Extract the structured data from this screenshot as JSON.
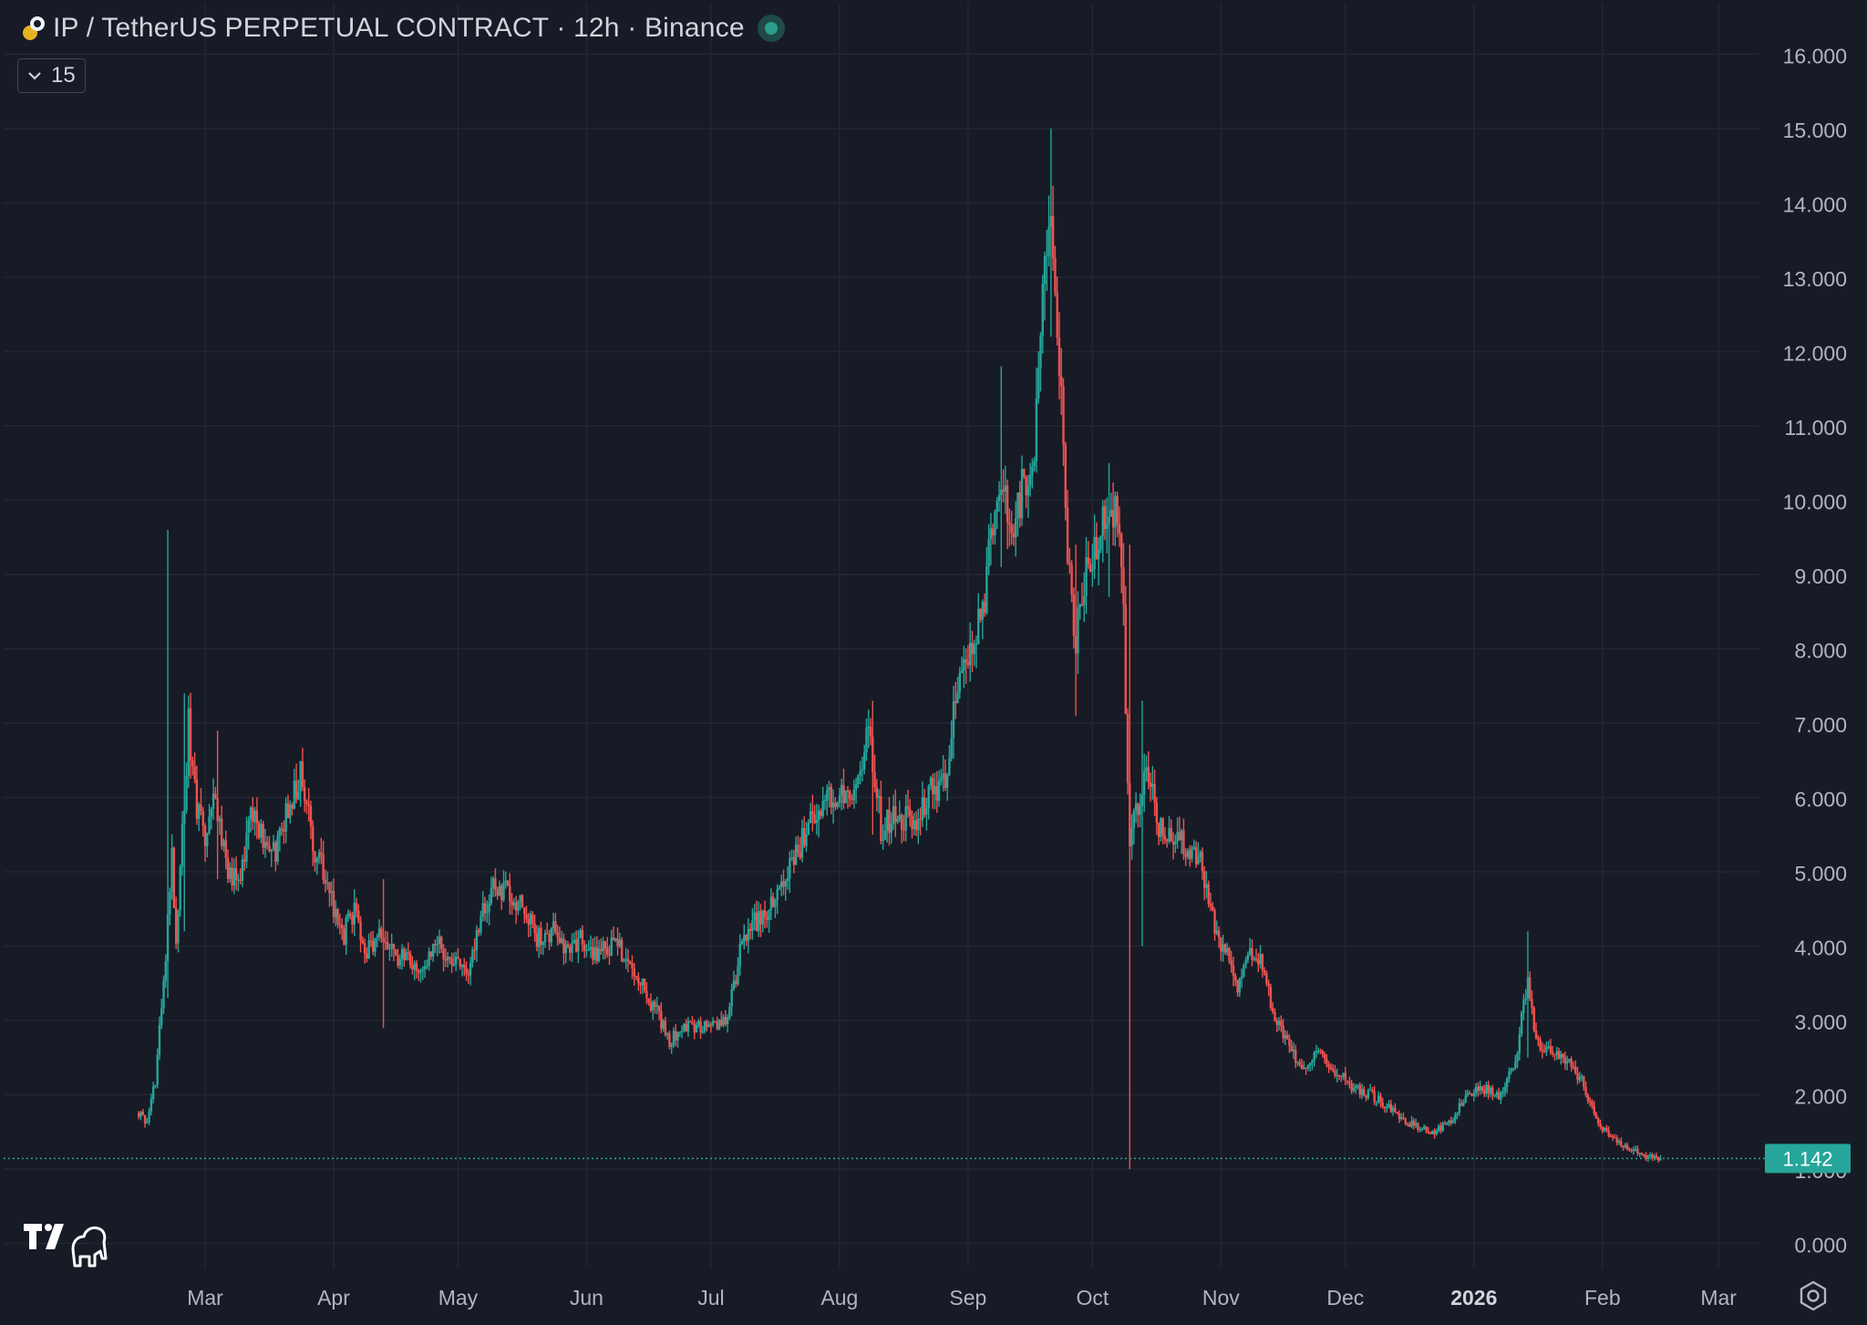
{
  "header": {
    "symbol_title": "IP / TetherUS PERPETUAL CONTRACT · 12h · Binance",
    "indicator_count": "15"
  },
  "icons": {
    "symbol": "symbol-logo-icon",
    "status": "market-status-icon",
    "collapse": "chevron-down-icon",
    "brand": "tradingview-logo-icon",
    "settings": "gear-icon"
  },
  "colors": {
    "background": "#171b26",
    "grid": "#232733",
    "up": "#26a69a",
    "down": "#ef5350",
    "text": "#b2b5be",
    "last_price_bg": "#26a69a"
  },
  "chart_data": {
    "type": "candlestick",
    "interval": "12h",
    "y_axis": {
      "range": [
        0,
        16
      ],
      "ticks": [
        "0.000",
        "1.000",
        "2.000",
        "3.000",
        "4.000",
        "5.000",
        "6.000",
        "7.000",
        "8.000",
        "9.000",
        "10.000",
        "11.000",
        "12.000",
        "13.000",
        "14.000",
        "15.000",
        "16.000"
      ]
    },
    "x_axis": {
      "ticks": [
        {
          "date": "2025-03-01",
          "label": "Mar",
          "bold": false
        },
        {
          "date": "2025-04-01",
          "label": "Apr",
          "bold": false
        },
        {
          "date": "2025-05-01",
          "label": "May",
          "bold": false
        },
        {
          "date": "2025-06-01",
          "label": "Jun",
          "bold": false
        },
        {
          "date": "2025-07-01",
          "label": "Jul",
          "bold": false
        },
        {
          "date": "2025-08-01",
          "label": "Aug",
          "bold": false
        },
        {
          "date": "2025-09-01",
          "label": "Sep",
          "bold": false
        },
        {
          "date": "2025-10-01",
          "label": "Oct",
          "bold": false
        },
        {
          "date": "2025-11-01",
          "label": "Nov",
          "bold": false
        },
        {
          "date": "2025-12-01",
          "label": "Dec",
          "bold": false
        },
        {
          "date": "2026-01-01",
          "label": "2026",
          "bold": true
        },
        {
          "date": "2026-02-01",
          "label": "Feb",
          "bold": false
        },
        {
          "date": "2026-03-01",
          "label": "Mar",
          "bold": false
        }
      ]
    },
    "last_price": 1.142,
    "last_price_label": "1.142",
    "price_path": [
      [
        "2025-02-13",
        1.75
      ],
      [
        "2025-02-15",
        1.6
      ],
      [
        "2025-02-17",
        2.2
      ],
      [
        "2025-02-19",
        3.5
      ],
      [
        "2025-02-21",
        5.2
      ],
      [
        "2025-02-22",
        4.0
      ],
      [
        "2025-02-24",
        6.0
      ],
      [
        "2025-02-25",
        7.0
      ],
      [
        "2025-02-27",
        5.8
      ],
      [
        "2025-03-01",
        5.5
      ],
      [
        "2025-03-03",
        6.2
      ],
      [
        "2025-03-06",
        5.1
      ],
      [
        "2025-03-09",
        4.8
      ],
      [
        "2025-03-12",
        5.8
      ],
      [
        "2025-03-15",
        5.5
      ],
      [
        "2025-03-18",
        5.3
      ],
      [
        "2025-03-21",
        5.9
      ],
      [
        "2025-03-24",
        6.3
      ],
      [
        "2025-03-27",
        5.4
      ],
      [
        "2025-03-30",
        4.9
      ],
      [
        "2025-04-03",
        4.1
      ],
      [
        "2025-04-06",
        4.5
      ],
      [
        "2025-04-09",
        3.9
      ],
      [
        "2025-04-12",
        4.2
      ],
      [
        "2025-04-16",
        3.8
      ],
      [
        "2025-04-19",
        3.9
      ],
      [
        "2025-04-22",
        3.6
      ],
      [
        "2025-04-26",
        4.0
      ],
      [
        "2025-04-29",
        3.9
      ],
      [
        "2025-05-03",
        3.6
      ],
      [
        "2025-05-07",
        4.5
      ],
      [
        "2025-05-10",
        4.8
      ],
      [
        "2025-05-13",
        4.7
      ],
      [
        "2025-05-17",
        4.5
      ],
      [
        "2025-05-20",
        4.1
      ],
      [
        "2025-05-24",
        4.2
      ],
      [
        "2025-05-27",
        3.9
      ],
      [
        "2025-05-31",
        4.1
      ],
      [
        "2025-06-03",
        3.9
      ],
      [
        "2025-06-07",
        4.0
      ],
      [
        "2025-06-11",
        3.9
      ],
      [
        "2025-06-15",
        3.4
      ],
      [
        "2025-06-18",
        3.1
      ],
      [
        "2025-06-21",
        2.7
      ],
      [
        "2025-06-24",
        2.9
      ],
      [
        "2025-06-28",
        2.9
      ],
      [
        "2025-07-02",
        2.9
      ],
      [
        "2025-07-05",
        3.0
      ],
      [
        "2025-07-08",
        3.9
      ],
      [
        "2025-07-11",
        4.3
      ],
      [
        "2025-07-15",
        4.5
      ],
      [
        "2025-07-19",
        4.9
      ],
      [
        "2025-07-23",
        5.4
      ],
      [
        "2025-07-27",
        5.9
      ],
      [
        "2025-08-01",
        6.1
      ],
      [
        "2025-08-05",
        6.0
      ],
      [
        "2025-08-08",
        6.9
      ],
      [
        "2025-08-11",
        5.6
      ],
      [
        "2025-08-15",
        5.8
      ],
      [
        "2025-08-19",
        5.6
      ],
      [
        "2025-08-23",
        6.1
      ],
      [
        "2025-08-27",
        6.2
      ],
      [
        "2025-08-30",
        7.9
      ],
      [
        "2025-09-02",
        7.9
      ],
      [
        "2025-09-05",
        8.6
      ],
      [
        "2025-09-08",
        10.3
      ],
      [
        "2025-09-11",
        9.7
      ],
      [
        "2025-09-14",
        10.1
      ],
      [
        "2025-09-17",
        10.9
      ],
      [
        "2025-09-19",
        12.8
      ],
      [
        "2025-09-21",
        14.3
      ],
      [
        "2025-09-23",
        11.8
      ],
      [
        "2025-09-25",
        9.3
      ],
      [
        "2025-09-27",
        8.2
      ],
      [
        "2025-09-30",
        9.1
      ],
      [
        "2025-10-03",
        9.6
      ],
      [
        "2025-10-06",
        9.9
      ],
      [
        "2025-10-08",
        9.3
      ],
      [
        "2025-10-10",
        5.4
      ],
      [
        "2025-10-12",
        5.9
      ],
      [
        "2025-10-14",
        6.6
      ],
      [
        "2025-10-17",
        5.6
      ],
      [
        "2025-10-20",
        5.5
      ],
      [
        "2025-10-24",
        5.3
      ],
      [
        "2025-10-27",
        5.2
      ],
      [
        "2025-10-30",
        4.4
      ],
      [
        "2025-11-02",
        3.9
      ],
      [
        "2025-11-05",
        3.5
      ],
      [
        "2025-11-08",
        3.9
      ],
      [
        "2025-11-11",
        3.8
      ],
      [
        "2025-11-14",
        3.0
      ],
      [
        "2025-11-18",
        2.6
      ],
      [
        "2025-11-21",
        2.3
      ],
      [
        "2025-11-25",
        2.6
      ],
      [
        "2025-11-29",
        2.3
      ],
      [
        "2025-12-03",
        2.1
      ],
      [
        "2025-12-07",
        2.0
      ],
      [
        "2025-12-12",
        1.8
      ],
      [
        "2025-12-17",
        1.6
      ],
      [
        "2025-12-22",
        1.5
      ],
      [
        "2025-12-26",
        1.6
      ],
      [
        "2025-12-30",
        2.0
      ],
      [
        "2026-01-03",
        2.1
      ],
      [
        "2026-01-07",
        2.0
      ],
      [
        "2026-01-11",
        2.4
      ],
      [
        "2026-01-14",
        3.6
      ],
      [
        "2026-01-16",
        2.7
      ],
      [
        "2026-01-19",
        2.6
      ],
      [
        "2026-01-23",
        2.5
      ],
      [
        "2026-01-27",
        2.2
      ],
      [
        "2026-01-31",
        1.6
      ],
      [
        "2026-02-04",
        1.4
      ],
      [
        "2026-02-08",
        1.25
      ],
      [
        "2026-02-12",
        1.16
      ],
      [
        "2026-02-15",
        1.142
      ]
    ],
    "spikes": [
      {
        "date": "2025-02-20",
        "high": 9.6,
        "low": 3.3
      },
      {
        "date": "2025-02-24",
        "high": 7.4,
        "low": 4.2
      },
      {
        "date": "2025-03-04",
        "high": 6.9,
        "low": 4.9
      },
      {
        "date": "2025-04-13",
        "high": 4.9,
        "low": 2.9
      },
      {
        "date": "2025-08-09",
        "high": 7.3,
        "low": 5.5
      },
      {
        "date": "2025-09-09",
        "high": 11.8,
        "low": 9.1
      },
      {
        "date": "2025-09-21",
        "high": 15.0,
        "low": 12.2
      },
      {
        "date": "2025-09-27",
        "high": 9.4,
        "low": 7.1
      },
      {
        "date": "2025-10-05",
        "high": 10.5,
        "low": 8.7
      },
      {
        "date": "2025-10-10",
        "high": 9.4,
        "low": 1.0
      },
      {
        "date": "2025-10-13",
        "high": 7.3,
        "low": 4.0
      },
      {
        "date": "2026-01-14",
        "high": 4.2,
        "low": 2.5
      }
    ]
  }
}
